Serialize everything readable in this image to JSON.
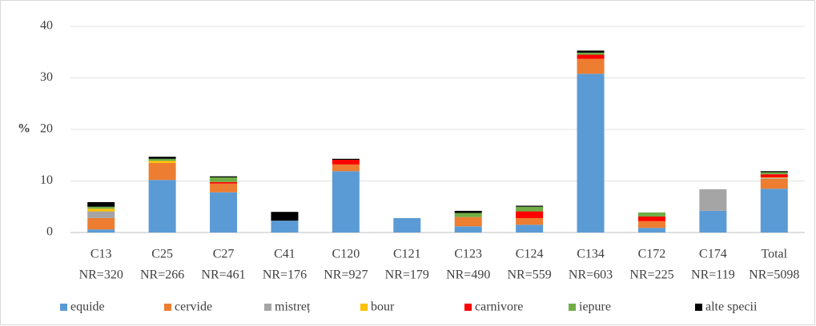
{
  "chart_data": {
    "type": "stacked_bar",
    "y_label": "%",
    "categories": [
      [
        "C13",
        "NR=320"
      ],
      [
        "C25",
        "NR=266"
      ],
      [
        "C27",
        "NR=461"
      ],
      [
        "C41",
        "NR=176"
      ],
      [
        "C120",
        "NR=927"
      ],
      [
        "C121",
        "NR=179"
      ],
      [
        "C123",
        "NR=490"
      ],
      [
        "C124",
        "NR=559"
      ],
      [
        "C134",
        "NR=603"
      ],
      [
        "C172",
        "NR=225"
      ],
      [
        "C174",
        "NR=119"
      ],
      [
        "Total",
        "NR=5098"
      ]
    ],
    "series": [
      {
        "name": "equide",
        "color": "#5b9bd5",
        "values": [
          0.6,
          10.2,
          7.8,
          2.3,
          11.9,
          2.8,
          1.2,
          1.5,
          30.8,
          0.9,
          4.2,
          8.5
        ]
      },
      {
        "name": "cervide",
        "color": "#ed7d31",
        "values": [
          2.2,
          3.3,
          1.7,
          0,
          1.3,
          0,
          1.8,
          1.3,
          2.9,
          1.3,
          0,
          1.9
        ]
      },
      {
        "name": "mistreț",
        "color": "#a5a5a5",
        "values": [
          1.3,
          0,
          0,
          0,
          0,
          0,
          0,
          0,
          0,
          0,
          4.2,
          0.2
        ]
      },
      {
        "name": "bour",
        "color": "#ffc000",
        "values": [
          0.5,
          0.4,
          0,
          0,
          0,
          0,
          0,
          0,
          0,
          0,
          0,
          0.1
        ]
      },
      {
        "name": "carnivore",
        "color": "#ff0000",
        "values": [
          0,
          0,
          0.3,
          0,
          0.9,
          0,
          0,
          1.3,
          0.8,
          0.9,
          0,
          0.6
        ]
      },
      {
        "name": "iepure",
        "color": "#70ad47",
        "values": [
          0.4,
          0.4,
          0.9,
          0,
          0,
          0,
          0.8,
          0.9,
          0.4,
          0.8,
          0,
          0.4
        ]
      },
      {
        "name": "alte specii",
        "color": "#000000",
        "values": [
          0.9,
          0.4,
          0.2,
          1.7,
          0.2,
          0,
          0.4,
          0.2,
          0.4,
          0,
          0,
          0.2
        ]
      }
    ],
    "ylim": [
      0,
      40
    ],
    "yticks": [
      0,
      10,
      20,
      30,
      40
    ],
    "grid": true,
    "legend": "bottom"
  }
}
